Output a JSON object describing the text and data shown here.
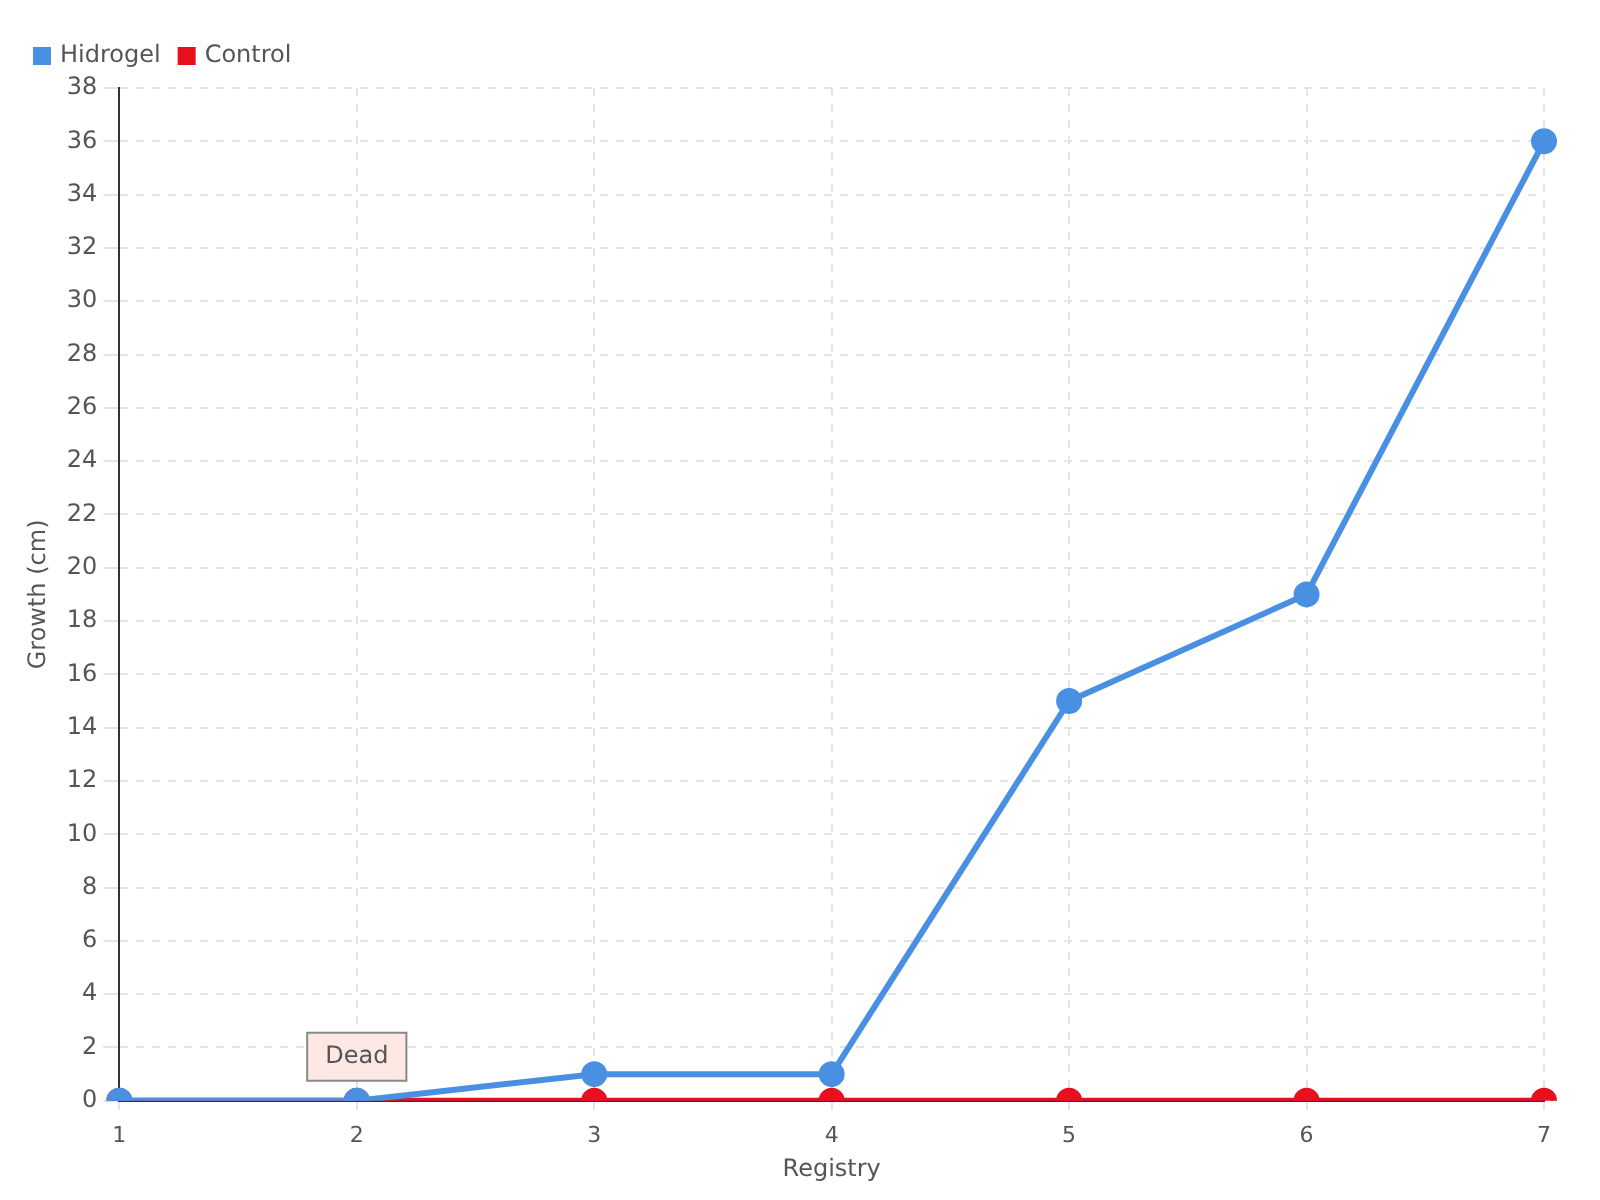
{
  "chart_data": {
    "type": "line",
    "xlabel": "Registry",
    "ylabel": "Growth (cm)",
    "categories": [
      "1",
      "2",
      "3",
      "4",
      "5",
      "6",
      "7"
    ],
    "series": [
      {
        "name": "Hidrogel",
        "color": "#4a90e2",
        "values": [
          0,
          0,
          1,
          1,
          15,
          19,
          36
        ]
      },
      {
        "name": "Control",
        "color": "#e8101e",
        "values": [
          0,
          0,
          0,
          0,
          0,
          0,
          0
        ]
      }
    ],
    "ylim": [
      0,
      38
    ],
    "yticks": [
      0,
      2,
      4,
      6,
      8,
      10,
      12,
      14,
      16,
      18,
      20,
      22,
      24,
      26,
      28,
      30,
      32,
      34,
      36,
      38
    ],
    "grid": true,
    "legend": "top left",
    "marker": "circle",
    "line_style": "solid",
    "annotations": [
      {
        "text": "Dead",
        "x": "2",
        "y": 0
      }
    ]
  }
}
